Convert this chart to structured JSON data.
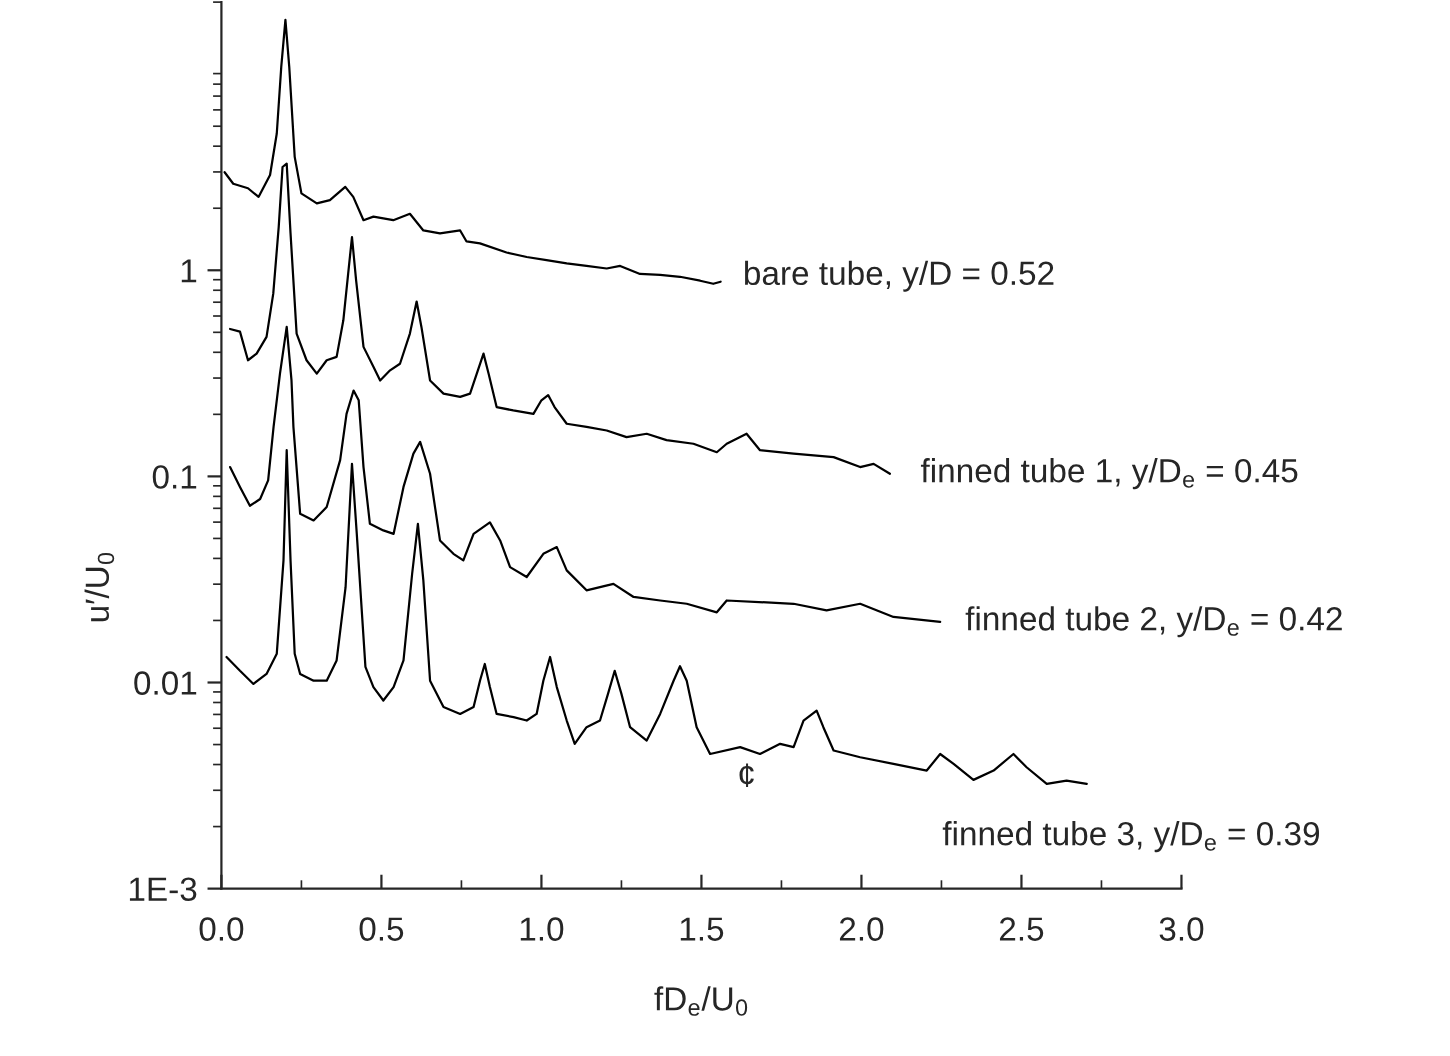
{
  "chart_data": {
    "type": "line",
    "xlabel": "fD$_{e}$/U$_{0}$",
    "ylabel": "u′/U$_{0}$",
    "log": "y",
    "grid": false,
    "legend": false,
    "marker": "none",
    "line_style": "solid",
    "xlim": [
      0,
      3
    ],
    "xticks": [
      {
        "value": 0,
        "label": "0.0"
      },
      {
        "value": 0.5,
        "label": "0.5"
      },
      {
        "value": 1,
        "label": "1.0"
      },
      {
        "value": 1.5,
        "label": "1.5"
      },
      {
        "value": 2,
        "label": "2.0"
      },
      {
        "value": 2.5,
        "label": "2.5"
      },
      {
        "value": 3,
        "label": "3.0"
      }
    ],
    "ylim": [
      0.001,
      20
    ],
    "yticks": [
      {
        "value": 0.001,
        "label": "1E-3"
      },
      {
        "value": 0.01,
        "label": "0.01"
      },
      {
        "value": 0.1,
        "label": "0.1"
      },
      {
        "value": 1,
        "label": "1"
      }
    ],
    "annotations": [
      "¢"
    ],
    "series": [
      {
        "name": "bare tube, y/D = 0.52",
        "color": "#000000",
        "x": [
          0.01,
          0.037,
          0.083,
          0.116,
          0.152,
          0.173,
          0.187,
          0.2,
          0.212,
          0.229,
          0.25,
          0.298,
          0.339,
          0.387,
          0.412,
          0.444,
          0.475,
          0.537,
          0.589,
          0.631,
          0.683,
          0.746,
          0.766,
          0.808,
          0.891,
          0.954,
          1.016,
          1.079,
          1.141,
          1.204,
          1.246,
          1.308,
          1.371,
          1.433,
          1.496,
          1.537,
          1.56
        ],
        "values": [
          2.99,
          2.63,
          2.5,
          2.27,
          2.9,
          4.61,
          9.7,
          16.4,
          9.7,
          3.55,
          2.36,
          2.11,
          2.19,
          2.54,
          2.27,
          1.75,
          1.82,
          1.75,
          1.88,
          1.56,
          1.51,
          1.56,
          1.38,
          1.35,
          1.22,
          1.16,
          1.12,
          1.08,
          1.05,
          1.02,
          1.05,
          0.96,
          0.95,
          0.93,
          0.89,
          0.86,
          0.88
        ]
      },
      {
        "name": "finned tube 1, y/D$_{e}$ = 0.45",
        "color": "#000000",
        "x": [
          0.027,
          0.058,
          0.083,
          0.11,
          0.141,
          0.162,
          0.179,
          0.191,
          0.204,
          0.216,
          0.235,
          0.266,
          0.298,
          0.329,
          0.36,
          0.381,
          0.396,
          0.408,
          0.421,
          0.444,
          0.475,
          0.496,
          0.527,
          0.558,
          0.589,
          0.61,
          0.625,
          0.652,
          0.694,
          0.746,
          0.777,
          0.798,
          0.819,
          0.835,
          0.86,
          0.912,
          0.975,
          1.0,
          1.021,
          1.041,
          1.079,
          1.141,
          1.204,
          1.266,
          1.329,
          1.391,
          1.475,
          1.548,
          1.579,
          1.641,
          1.683,
          1.788,
          1.913,
          1.996,
          2.038,
          2.089
        ],
        "values": [
          0.519,
          0.504,
          0.366,
          0.394,
          0.475,
          0.77,
          1.62,
          3.17,
          3.29,
          1.51,
          0.493,
          0.366,
          0.315,
          0.366,
          0.38,
          0.572,
          0.96,
          1.45,
          0.89,
          0.425,
          0.34,
          0.292,
          0.327,
          0.352,
          0.493,
          0.705,
          0.531,
          0.292,
          0.252,
          0.243,
          0.252,
          0.315,
          0.394,
          0.315,
          0.217,
          0.209,
          0.201,
          0.234,
          0.248,
          0.217,
          0.18,
          0.174,
          0.167,
          0.155,
          0.161,
          0.15,
          0.144,
          0.131,
          0.144,
          0.161,
          0.134,
          0.129,
          0.124,
          0.111,
          0.115,
          0.103
        ]
      },
      {
        "name": "finned tube 2, y/D$_{e}$ = 0.42",
        "color": "#000000",
        "x": [
          0.027,
          0.058,
          0.089,
          0.121,
          0.146,
          0.163,
          0.183,
          0.204,
          0.219,
          0.225,
          0.246,
          0.288,
          0.329,
          0.371,
          0.391,
          0.413,
          0.429,
          0.444,
          0.464,
          0.506,
          0.538,
          0.569,
          0.6,
          0.621,
          0.652,
          0.683,
          0.725,
          0.756,
          0.788,
          0.839,
          0.871,
          0.902,
          0.954,
          1.006,
          1.048,
          1.079,
          1.141,
          1.225,
          1.288,
          1.371,
          1.454,
          1.548,
          1.579,
          1.788,
          1.891,
          1.996,
          2.1,
          2.246
        ],
        "values": [
          0.111,
          0.0889,
          0.072,
          0.0777,
          0.0957,
          0.174,
          0.315,
          0.531,
          0.292,
          0.174,
          0.0658,
          0.0611,
          0.071,
          0.12,
          0.201,
          0.261,
          0.234,
          0.111,
          0.0589,
          0.0547,
          0.0526,
          0.0889,
          0.129,
          0.147,
          0.103,
          0.0489,
          0.0421,
          0.0391,
          0.0526,
          0.0598,
          0.0489,
          0.0363,
          0.0325,
          0.0421,
          0.0454,
          0.035,
          0.028,
          0.0301,
          0.026,
          0.025,
          0.0241,
          0.0219,
          0.025,
          0.0241,
          0.0224,
          0.0241,
          0.0208,
          0.0197
        ]
      },
      {
        "name": "finned tube 3, y/D$_{e}$ = 0.39",
        "color": "#000000",
        "x": [
          0.016,
          0.058,
          0.1,
          0.141,
          0.173,
          0.194,
          0.204,
          0.216,
          0.229,
          0.246,
          0.288,
          0.329,
          0.36,
          0.388,
          0.408,
          0.423,
          0.45,
          0.475,
          0.506,
          0.538,
          0.569,
          0.596,
          0.614,
          0.631,
          0.652,
          0.694,
          0.746,
          0.788,
          0.808,
          0.823,
          0.839,
          0.86,
          0.913,
          0.954,
          0.985,
          1.006,
          1.027,
          1.048,
          1.079,
          1.104,
          1.141,
          1.183,
          1.208,
          1.229,
          1.25,
          1.277,
          1.329,
          1.371,
          1.413,
          1.433,
          1.454,
          1.485,
          1.527,
          1.621,
          1.683,
          1.746,
          1.788,
          1.819,
          1.86,
          1.881,
          1.913,
          1.996,
          2.1,
          2.204,
          2.246,
          2.288,
          2.35,
          2.413,
          2.475,
          2.516,
          2.579,
          2.641,
          2.704
        ],
        "values": [
          0.0133,
          0.0114,
          0.00984,
          0.011,
          0.0138,
          0.0391,
          0.134,
          0.0391,
          0.0138,
          0.011,
          0.0102,
          0.0102,
          0.0128,
          0.029,
          0.115,
          0.0526,
          0.0119,
          0.0095,
          0.00818,
          0.0095,
          0.0128,
          0.0337,
          0.0589,
          0.0313,
          0.0102,
          0.0076,
          0.00704,
          0.0076,
          0.0102,
          0.0123,
          0.0095,
          0.00704,
          0.00679,
          0.00654,
          0.00704,
          0.0102,
          0.0133,
          0.0095,
          0.00654,
          0.00504,
          0.00607,
          0.00654,
          0.00881,
          0.0114,
          0.00881,
          0.00607,
          0.00523,
          0.00704,
          0.0102,
          0.012,
          0.0102,
          0.00607,
          0.0045,
          0.00486,
          0.0045,
          0.00504,
          0.00486,
          0.00654,
          0.00731,
          0.00607,
          0.00468,
          0.00434,
          0.00403,
          0.00374,
          0.0045,
          0.00403,
          0.00337,
          0.00374,
          0.0045,
          0.00388,
          0.00322,
          0.00334,
          0.00322
        ]
      }
    ]
  }
}
